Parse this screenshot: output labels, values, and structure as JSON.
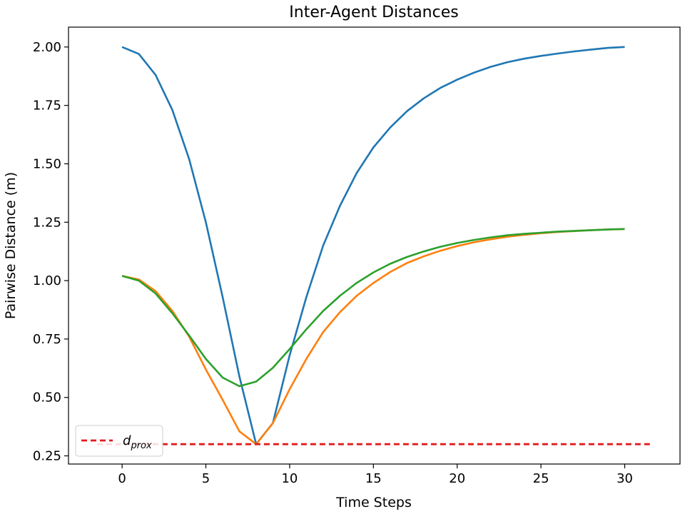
{
  "chart_data": {
    "type": "line",
    "title": "Inter-Agent Distances",
    "xlabel": "Time Steps",
    "ylabel": "Pairwise Distance (m)",
    "xlim": [
      -3.2,
      33.3
    ],
    "ylim": [
      0.215,
      2.085
    ],
    "x_ticks": [
      0,
      5,
      10,
      15,
      20,
      25,
      30
    ],
    "y_ticks": [
      0.25,
      0.5,
      0.75,
      1.0,
      1.25,
      1.5,
      1.75,
      2.0
    ],
    "y_tick_labels": [
      "0.25",
      "0.50",
      "0.75",
      "1.00",
      "1.25",
      "1.50",
      "1.75",
      "2.00"
    ],
    "grid": false,
    "legend_position": "lower-left",
    "x": [
      0,
      1,
      2,
      3,
      4,
      5,
      6,
      7,
      8,
      9,
      10,
      11,
      12,
      13,
      14,
      15,
      16,
      17,
      18,
      19,
      20,
      21,
      22,
      23,
      24,
      25,
      26,
      27,
      28,
      29,
      30
    ],
    "series": [
      {
        "color": "#1f77b4",
        "values": [
          2.0,
          1.97,
          1.88,
          1.73,
          1.52,
          1.25,
          0.93,
          0.59,
          0.3,
          0.39,
          0.68,
          0.93,
          1.15,
          1.32,
          1.46,
          1.57,
          1.655,
          1.725,
          1.78,
          1.825,
          1.86,
          1.89,
          1.915,
          1.935,
          1.95,
          1.962,
          1.972,
          1.981,
          1.989,
          1.996,
          2.0
        ]
      },
      {
        "color": "#ff7f0e",
        "values": [
          1.02,
          1.005,
          0.955,
          0.87,
          0.76,
          0.62,
          0.49,
          0.355,
          0.3,
          0.39,
          0.535,
          0.665,
          0.78,
          0.865,
          0.935,
          0.99,
          1.037,
          1.075,
          1.104,
          1.128,
          1.148,
          1.164,
          1.177,
          1.188,
          1.196,
          1.203,
          1.208,
          1.212,
          1.216,
          1.219,
          1.221
        ]
      },
      {
        "color": "#2ca02c",
        "values": [
          1.02,
          1.0,
          0.945,
          0.86,
          0.765,
          0.665,
          0.585,
          0.548,
          0.568,
          0.627,
          0.707,
          0.792,
          0.87,
          0.935,
          0.99,
          1.035,
          1.072,
          1.101,
          1.125,
          1.145,
          1.161,
          1.174,
          1.185,
          1.194,
          1.2,
          1.205,
          1.21,
          1.213,
          1.216,
          1.219,
          1.221
        ]
      }
    ],
    "threshold": {
      "label_base": "d",
      "label_sub": "prox",
      "value": 0.3,
      "x_range": [
        -1.5,
        31.5
      ],
      "color": "#e31a1c",
      "style": "dashed"
    }
  }
}
